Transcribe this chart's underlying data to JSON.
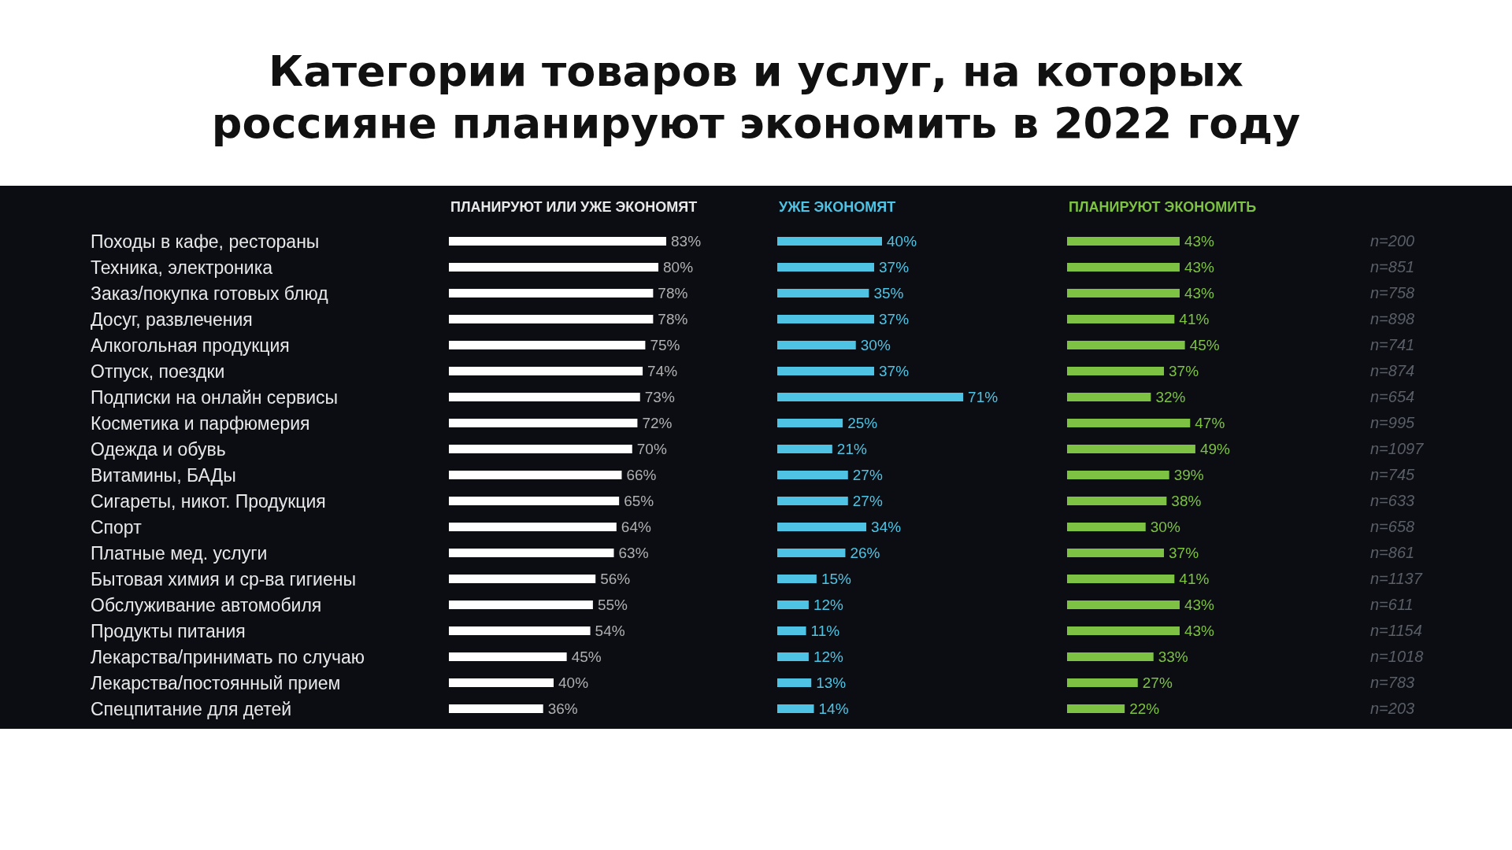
{
  "chart_data": [
    {
      "type": "bar",
      "orientation": "horizontal",
      "title": "Категории товаров и услуг, на которых россияне планируют экономить в 2022 году",
      "categories": [
        "Походы в кафе, рестораны",
        "Техника, электроника",
        "Заказ/покупка готовых блюд",
        "Досуг, развлечения",
        "Алкогольная продукция",
        "Отпуск, поездки",
        "Подписки на онлайн сервисы",
        "Косметика и парфюмерия",
        "Одежда и обувь",
        "Витамины, БАДы",
        "Сигареты, никот. Продукция",
        "Спорт",
        "Платные мед. услуги",
        "Бытовая химия и ср-ва гигиены",
        "Обслуживание автомобиля",
        "Продукты питания",
        "Лекарства/принимать по случаю",
        "Лекарства/постоянный прием",
        "Спецпитание для детей"
      ],
      "series": [
        {
          "name": "ПЛАНИРУЮТ ИЛИ УЖЕ ЭКОНОМЯТ",
          "color": "#ffffff",
          "values": [
            83,
            80,
            78,
            78,
            75,
            74,
            73,
            72,
            70,
            66,
            65,
            64,
            63,
            56,
            55,
            54,
            45,
            40,
            36
          ],
          "value_labels": [
            "83%",
            "80%",
            "78%",
            "78%",
            "75%",
            "74%",
            "73%",
            "72%",
            "70%",
            "66%",
            "65%",
            "64%",
            "63%",
            "56%",
            "55%",
            "54%",
            "45%",
            "40%",
            "36%"
          ]
        }
      ]
    },
    {
      "type": "bar",
      "orientation": "horizontal",
      "categories": [
        null,
        null,
        null,
        null,
        null,
        null,
        null,
        null,
        null,
        null,
        null,
        null,
        null,
        null,
        null,
        null,
        null,
        null,
        null
      ],
      "series": [
        {
          "name": "УЖЕ ЭКОНОМЯТ",
          "color": "#4fc3e3",
          "values": [
            40,
            37,
            35,
            37,
            30,
            37,
            71,
            25,
            21,
            27,
            27,
            34,
            26,
            15,
            12,
            11,
            12,
            13,
            14
          ],
          "value_labels": [
            "40%",
            "37%",
            "35%",
            "37%",
            "30%",
            "37%",
            "71%",
            "25%",
            "21%",
            "27%",
            "27%",
            "34%",
            "26%",
            "15%",
            "12%",
            "11%",
            "12%",
            "13%",
            "14%"
          ]
        }
      ]
    },
    {
      "type": "bar",
      "orientation": "horizontal",
      "categories": [
        null,
        null,
        null,
        null,
        null,
        null,
        null,
        null,
        null,
        null,
        null,
        null,
        null,
        null,
        null,
        null,
        null,
        null,
        null
      ],
      "series": [
        {
          "name": "ПЛАНИРУЮТ ЭКОНОМИТЬ",
          "color": "#7dc242",
          "values": [
            43,
            43,
            43,
            41,
            45,
            37,
            32,
            47,
            49,
            39,
            38,
            30,
            37,
            41,
            43,
            43,
            33,
            27,
            22
          ],
          "value_labels": [
            "43%",
            "43%",
            "43%",
            "41%",
            "45%",
            "37%",
            "32%",
            "47%",
            "49%",
            "39%",
            "38%",
            "30%",
            "37%",
            "41%",
            "43%",
            "43%",
            "33%",
            "27%",
            "22%"
          ]
        }
      ],
      "annotations": [
        "n=200",
        "n=851",
        "n=758",
        "n=898",
        "n=741",
        "n=874",
        "n=654",
        "n=995",
        "n=1097",
        "n=745",
        "n=633",
        "n=658",
        "n=861",
        "n=1137",
        "n=611",
        "n=1154",
        "n=1018",
        "n=783",
        "n=203"
      ]
    }
  ]
}
